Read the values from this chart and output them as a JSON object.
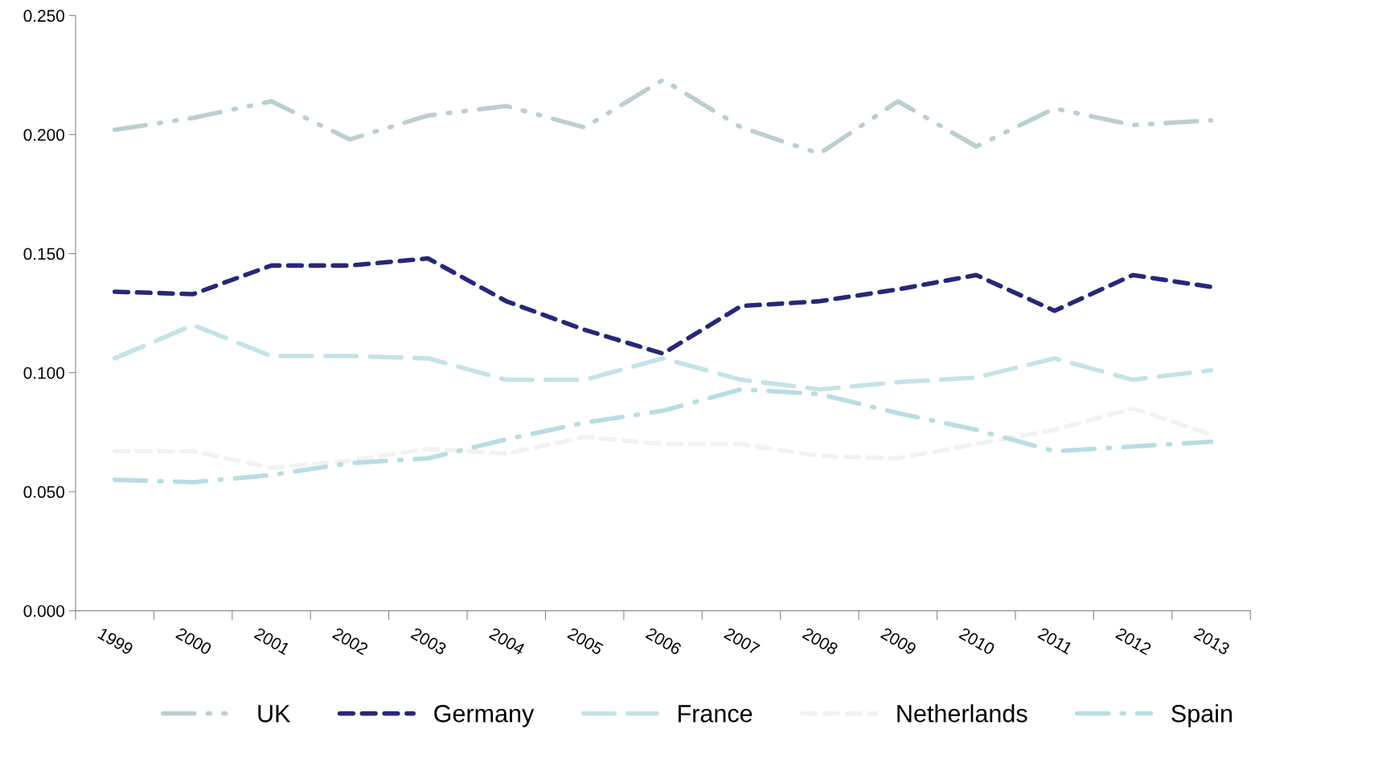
{
  "chart_data": {
    "type": "line",
    "categories": [
      "1999",
      "2000",
      "2001",
      "2002",
      "2003",
      "2004",
      "2005",
      "2006",
      "2007",
      "2008",
      "2009",
      "2010",
      "2011",
      "2012",
      "2013"
    ],
    "series": [
      {
        "name": "UK",
        "color": "#bccfd0",
        "line_style": "dashdotdot",
        "values": [
          0.202,
          0.207,
          0.214,
          0.198,
          0.208,
          0.212,
          0.203,
          0.223,
          0.203,
          0.192,
          0.214,
          0.195,
          0.211,
          0.204,
          0.206
        ]
      },
      {
        "name": "Germany",
        "color": "#27277a",
        "line_style": "dashed",
        "values": [
          0.134,
          0.133,
          0.145,
          0.145,
          0.148,
          0.13,
          0.118,
          0.108,
          0.128,
          0.13,
          0.135,
          0.141,
          0.126,
          0.141,
          0.136
        ]
      },
      {
        "name": "France",
        "color": "#c5e3e6",
        "line_style": "longdash",
        "values": [
          0.106,
          0.12,
          0.107,
          0.107,
          0.106,
          0.097,
          0.097,
          0.106,
          0.097,
          0.093,
          0.096,
          0.098,
          0.106,
          0.097,
          0.101
        ]
      },
      {
        "name": "Netherlands",
        "color": "#f2f2f2",
        "line_style": "dashed",
        "values": [
          0.067,
          0.067,
          0.06,
          0.063,
          0.068,
          0.066,
          0.073,
          0.07,
          0.07,
          0.065,
          0.064,
          0.07,
          0.076,
          0.085,
          0.074
        ]
      },
      {
        "name": "Spain",
        "color": "#b8dde2",
        "line_style": "dashdot",
        "values": [
          0.055,
          0.054,
          0.057,
          0.062,
          0.064,
          0.072,
          0.079,
          0.084,
          0.093,
          0.091,
          0.083,
          0.076,
          0.067,
          0.069,
          0.071
        ]
      }
    ],
    "ylim": [
      0,
      0.25
    ],
    "yticks": [
      {
        "value": 0,
        "label": "0.000"
      },
      {
        "value": 0.05,
        "label": "0.050"
      },
      {
        "value": 0.1,
        "label": "0.100"
      },
      {
        "value": 0.15,
        "label": "0.150"
      },
      {
        "value": 0.2,
        "label": "0.200"
      },
      {
        "value": 0.25,
        "label": "0.250"
      }
    ],
    "grid": false,
    "legend": "bottom",
    "marker": "none"
  }
}
